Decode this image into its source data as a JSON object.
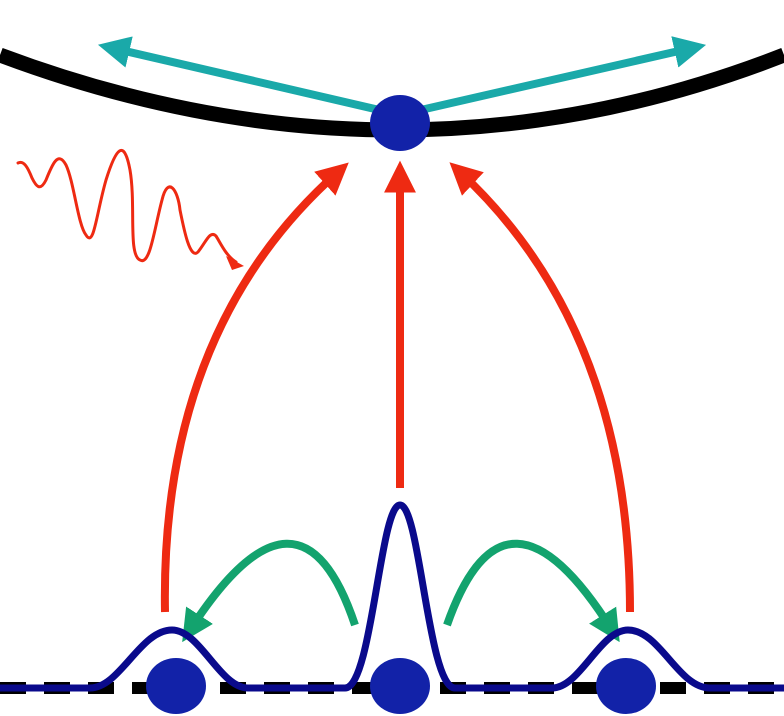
{
  "diagram": {
    "colors": {
      "upper_curve": "#000000",
      "upper_arrows": "#1aa9a9",
      "vertical_arrows": "#ee2a12",
      "hop_arrows": "#13a36e",
      "wavefunctions": "#0a0a8c",
      "dots": "#1222a8",
      "baseline": "#000000",
      "photon": "#ee2a12"
    },
    "icons": {
      "photon": "wavy-photon-icon",
      "state": "circle-dot-icon"
    }
  }
}
